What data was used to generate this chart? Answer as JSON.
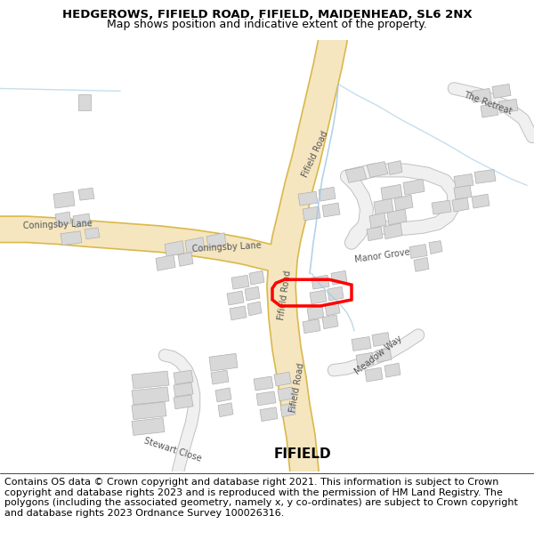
{
  "title_line1": "HEDGEROWS, FIFIELD ROAD, FIFIELD, MAIDENHEAD, SL6 2NX",
  "title_line2": "Map shows position and indicative extent of the property.",
  "footer_text": "Contains OS data © Crown copyright and database right 2021. This information is subject to Crown copyright and database rights 2023 and is reproduced with the permission of HM Land Registry. The polygons (including the associated geometry, namely x, y co-ordinates) are subject to Crown copyright and database rights 2023 Ordnance Survey 100026316.",
  "title_fontsize": 9.5,
  "footer_fontsize": 8.0,
  "map_bg": "#ffffff",
  "road_fill": "#f5e6c0",
  "road_edge": "#dab84a",
  "building_fill": "#d8d8d8",
  "building_edge": "#b0b0b0",
  "road_label_color": "#555555",
  "minor_road_fill": "#f0f0f0",
  "minor_road_edge": "#c0c0c0",
  "highlight_color": "#ff0000",
  "water_color": "#a0c8e0",
  "fifield_label_fontsize": 11,
  "road_label_fontsize": 7
}
